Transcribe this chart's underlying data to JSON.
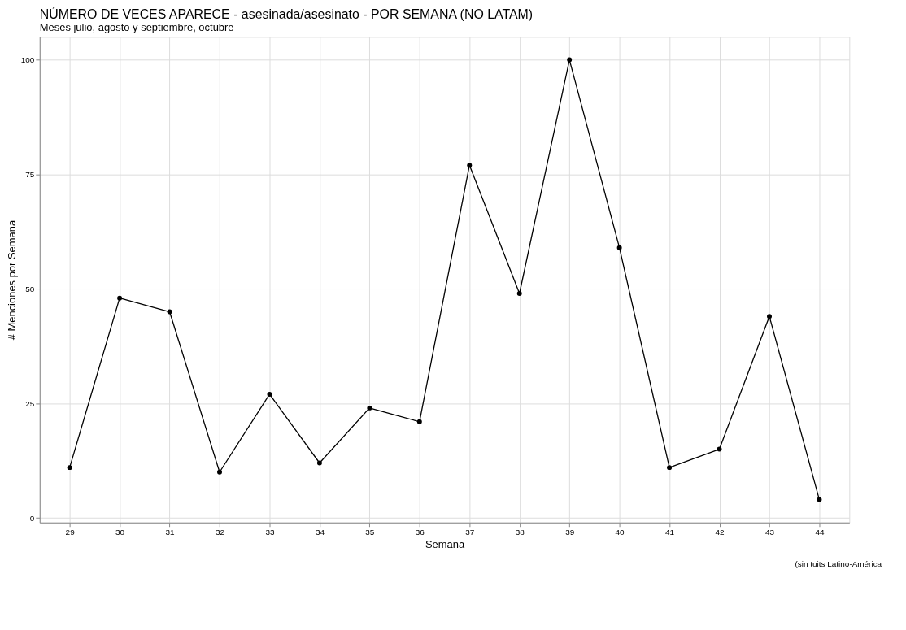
{
  "chart_data": {
    "type": "line",
    "title": "NÚMERO DE VECES APARECE - asesinada/asesinato - POR SEMANA (NO LATAM)",
    "subtitle": "Meses julio, agosto y septiembre, octubre",
    "xlabel": "Semana",
    "ylabel": "# Menciones por Semana",
    "annotations": [
      "(sin tuits Latino-América"
    ],
    "x": [
      29,
      30,
      31,
      32,
      33,
      34,
      35,
      36,
      37,
      38,
      39,
      40,
      41,
      42,
      43,
      44
    ],
    "series": [
      {
        "color": "#000000",
        "values": [
          11,
          48,
          45,
          10,
          27,
          12,
          24,
          21,
          77,
          49,
          100,
          59,
          11,
          15,
          44,
          4
        ]
      }
    ],
    "xlim": [
      28.4,
      44.6
    ],
    "ylim": [
      -1,
      105
    ],
    "xticks": [
      29,
      30,
      31,
      32,
      33,
      34,
      35,
      36,
      37,
      38,
      39,
      40,
      41,
      42,
      43,
      44
    ],
    "yticks": [
      0,
      25,
      50,
      75,
      100
    ],
    "grid": true,
    "legend": false,
    "marker": "circle",
    "line_style": "solid"
  }
}
